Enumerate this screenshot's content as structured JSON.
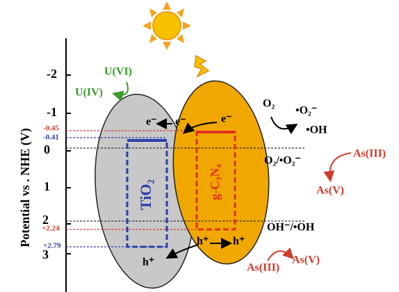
{
  "axis": {
    "label": "Potential vs . NHE (V)",
    "ticks": [
      "-2",
      "-1",
      "0",
      "1",
      "2",
      "3"
    ]
  },
  "levels": {
    "tio2_cb": "-0.41",
    "gcn_cb": "-0.45",
    "gcn_vb": "+2.24",
    "tio2_vb": "+2.79"
  },
  "semiconductors": {
    "left": "TiO₂",
    "right": "g-C₃N₄"
  },
  "charges": {
    "e1": "e⁻",
    "e2": "e⁻",
    "e3": "e⁻",
    "h1": "h⁺",
    "h2": "h⁺",
    "h3": "h⁺"
  },
  "species": {
    "u6": "U(VI)",
    "u4": "U(IV)",
    "o2": "O₂",
    "superoxide": "•O₂⁻",
    "oh_radical": "•OH",
    "o2_couple": "O₂/•O₂⁻",
    "as3_top": "As(III)",
    "as5_top": "As(V)",
    "oh_couple": "OH⁻/•OH",
    "as3_bottom": "As(III)",
    "as5_bottom": "As(V)"
  }
}
